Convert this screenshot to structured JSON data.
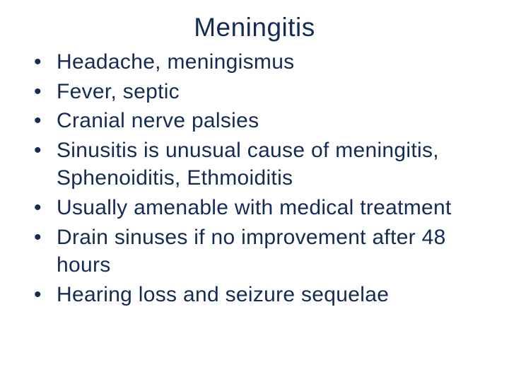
{
  "slide": {
    "title": "Meningitis",
    "title_fontsize": 37,
    "title_color": "#152a55",
    "title_align": "center",
    "background_color": "#ffffff",
    "text_color": "#152a55",
    "bullet_fontsize": 30,
    "font_family": "Arial",
    "bullets": [
      "Headache, meningismus",
      "Fever, septic",
      "Cranial nerve palsies",
      "Sinusitis is unusual cause of meningitis, Sphenoiditis, Ethmoiditis",
      "Usually amenable with medical treatment",
      "Drain sinuses if no improvement after 48 hours",
      "Hearing loss and seizure sequelae"
    ]
  }
}
